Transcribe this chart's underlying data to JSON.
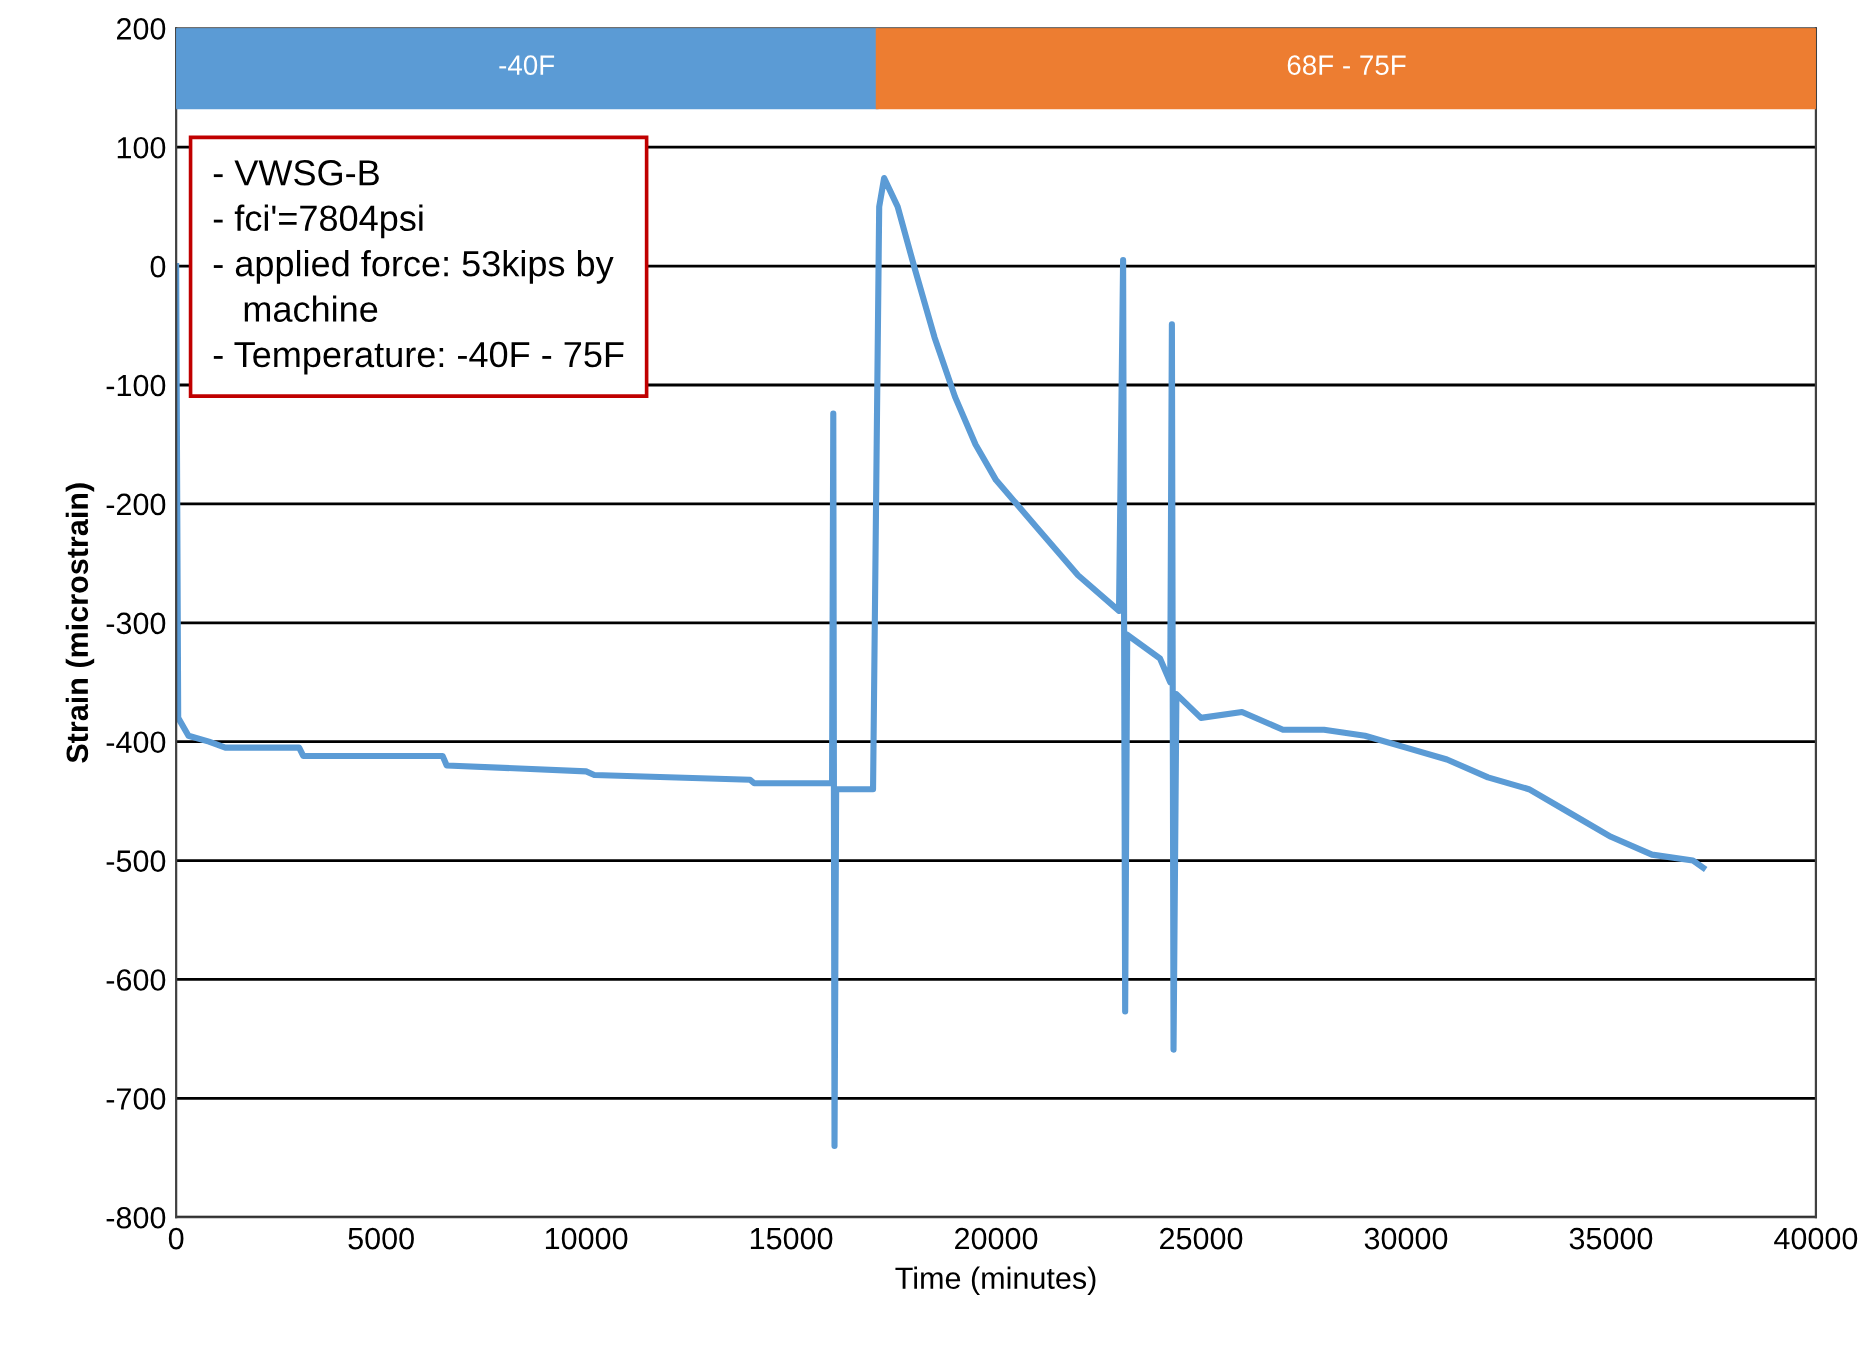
{
  "chart_data": {
    "type": "line",
    "xlabel": "Time (minutes)",
    "ylabel": "Strain (microstrain)",
    "xlim": [
      0,
      40000
    ],
    "xticks": [
      0,
      5000,
      10000,
      15000,
      20000,
      25000,
      30000,
      35000,
      40000
    ],
    "ylim": [
      -800,
      200
    ],
    "yticks": [
      -800,
      -700,
      -600,
      -500,
      -400,
      -300,
      -200,
      -100,
      0,
      100,
      200
    ],
    "grid": "y",
    "marker": "none",
    "line_style": "solid",
    "bands": [
      {
        "axis": "x",
        "from": 0,
        "to": 17100,
        "label": "-40F",
        "color": "#5b9bd5"
      },
      {
        "axis": "x",
        "from": 17100,
        "to": 40000,
        "label": "68F - 75F",
        "color": "#ed7d31"
      }
    ],
    "annotations": [
      "- VWSG-B\n- fci'=7804psi\n- applied force: 53kips by\n   machine\n- Temperature: -40F - 75F"
    ],
    "series": [
      {
        "color": "#5b9bd5",
        "x": [
          0,
          50,
          300,
          800,
          1200,
          3000,
          3100,
          6500,
          6600,
          10000,
          10200,
          14000,
          14100,
          16000,
          16030,
          16060,
          16100,
          17000,
          17150,
          17270,
          17600,
          18000,
          18500,
          19000,
          19500,
          20000,
          21000,
          22000,
          23000,
          23100,
          23150,
          23200,
          24000,
          24250,
          24290,
          24330,
          24400,
          25000,
          26000,
          27000,
          28000,
          29000,
          30000,
          31000,
          32000,
          33000,
          34000,
          35000,
          36000,
          37000,
          37250
        ],
        "values": [
          0,
          -380,
          -395,
          -400,
          -405,
          -405,
          -412,
          -412,
          -420,
          -425,
          -428,
          -432,
          -435,
          -435,
          -124,
          -740,
          -440,
          -440,
          50,
          74,
          50,
          0,
          -60,
          -110,
          -150,
          -180,
          -220,
          -260,
          -290,
          5,
          -627,
          -310,
          -330,
          -350,
          -49,
          -659,
          -360,
          -380,
          -375,
          -390,
          -390,
          -395,
          -405,
          -415,
          -430,
          -440,
          -460,
          -480,
          -495,
          -500,
          -506
        ]
      }
    ]
  }
}
